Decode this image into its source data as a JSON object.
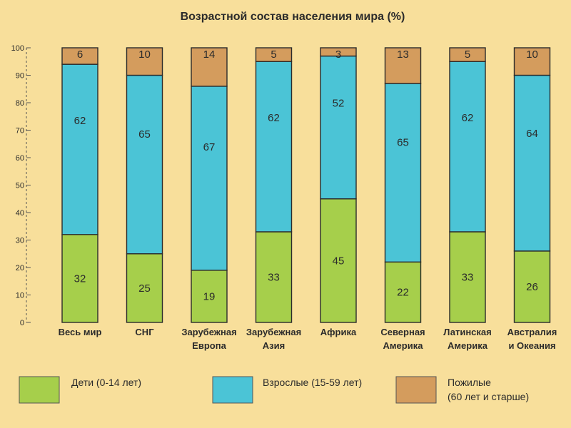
{
  "chart_data": {
    "type": "bar",
    "stacked": true,
    "title": "Возрастной состав населения мира (%)",
    "ylim": [
      0,
      100
    ],
    "yticks": [
      0,
      10,
      20,
      30,
      40,
      50,
      60,
      70,
      80,
      90,
      100
    ],
    "categories": [
      [
        "Весь мир"
      ],
      [
        "СНГ"
      ],
      [
        "Зарубежная",
        "Европа"
      ],
      [
        "Зарубежная",
        "Азия"
      ],
      [
        "Африка"
      ],
      [
        "Северная",
        "Америка"
      ],
      [
        "Латинская",
        "Америка"
      ],
      [
        "Австралия",
        "и Океания"
      ]
    ],
    "series": [
      {
        "name": "Дети (0-14 лет)",
        "color": "#a6cf4b",
        "values": [
          32,
          25,
          19,
          33,
          45,
          22,
          33,
          26
        ]
      },
      {
        "name": "Взрослые (15-59 лет)",
        "color": "#4bc4d6",
        "values": [
          62,
          65,
          67,
          62,
          52,
          65,
          62,
          64
        ]
      },
      {
        "name": [
          "Пожилые",
          "(60 лет и старше)"
        ],
        "color": "#d49c5d",
        "values": [
          6,
          10,
          14,
          5,
          3,
          13,
          5,
          10
        ]
      }
    ],
    "grid": false,
    "legend_position": "bottom"
  }
}
